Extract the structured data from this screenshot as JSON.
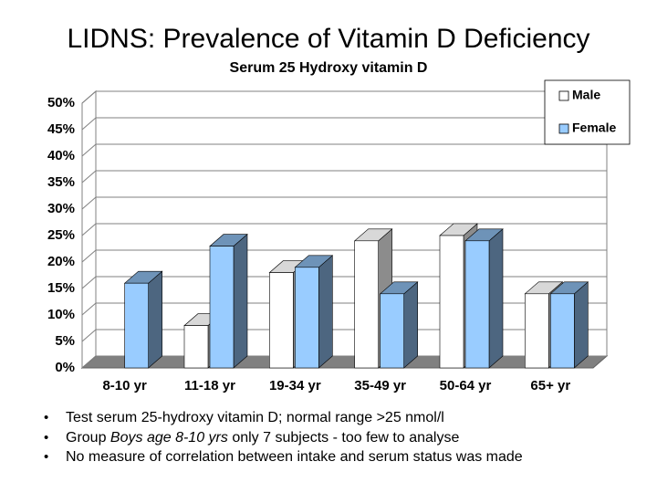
{
  "slide_title": "LIDNS: Prevalence of Vitamin D Deficiency",
  "notes": [
    "Test serum 25-hydroxy vitamin D; normal range >25 nmol/l",
    [
      "Group ",
      "Boys age 8-10 yrs",
      " only 7 subjects - too few to analyse"
    ],
    "No measure of correlation between intake and serum status was made"
  ],
  "chart_data": {
    "type": "bar3d",
    "title": "Serum 25 Hydroxy vitamin D",
    "categories": [
      "8-10 yr",
      "11-18 yr",
      "19-34 yr",
      "35-49 yr",
      "50-64 yr",
      "65+ yr"
    ],
    "series": [
      {
        "name": "Male",
        "color": "#ffffff",
        "values": [
          null,
          8,
          18,
          24,
          25,
          14
        ]
      },
      {
        "name": "Female",
        "color": "#99ccff",
        "values": [
          16,
          23,
          19,
          14,
          24,
          14
        ]
      }
    ],
    "ylim": [
      0,
      50
    ],
    "yticks": [
      {
        "value": 0,
        "label": "0%"
      },
      {
        "value": 5,
        "label": "5%"
      },
      {
        "value": 10,
        "label": "10%"
      },
      {
        "value": 15,
        "label": "15%"
      },
      {
        "value": 20,
        "label": "20%"
      },
      {
        "value": 25,
        "label": "25%"
      },
      {
        "value": 30,
        "label": "30%"
      },
      {
        "value": 35,
        "label": "35%"
      },
      {
        "value": 40,
        "label": "40%"
      },
      {
        "value": 45,
        "label": "45%"
      },
      {
        "value": 50,
        "label": "50%"
      }
    ],
    "grid": true,
    "legend": "top-right"
  }
}
